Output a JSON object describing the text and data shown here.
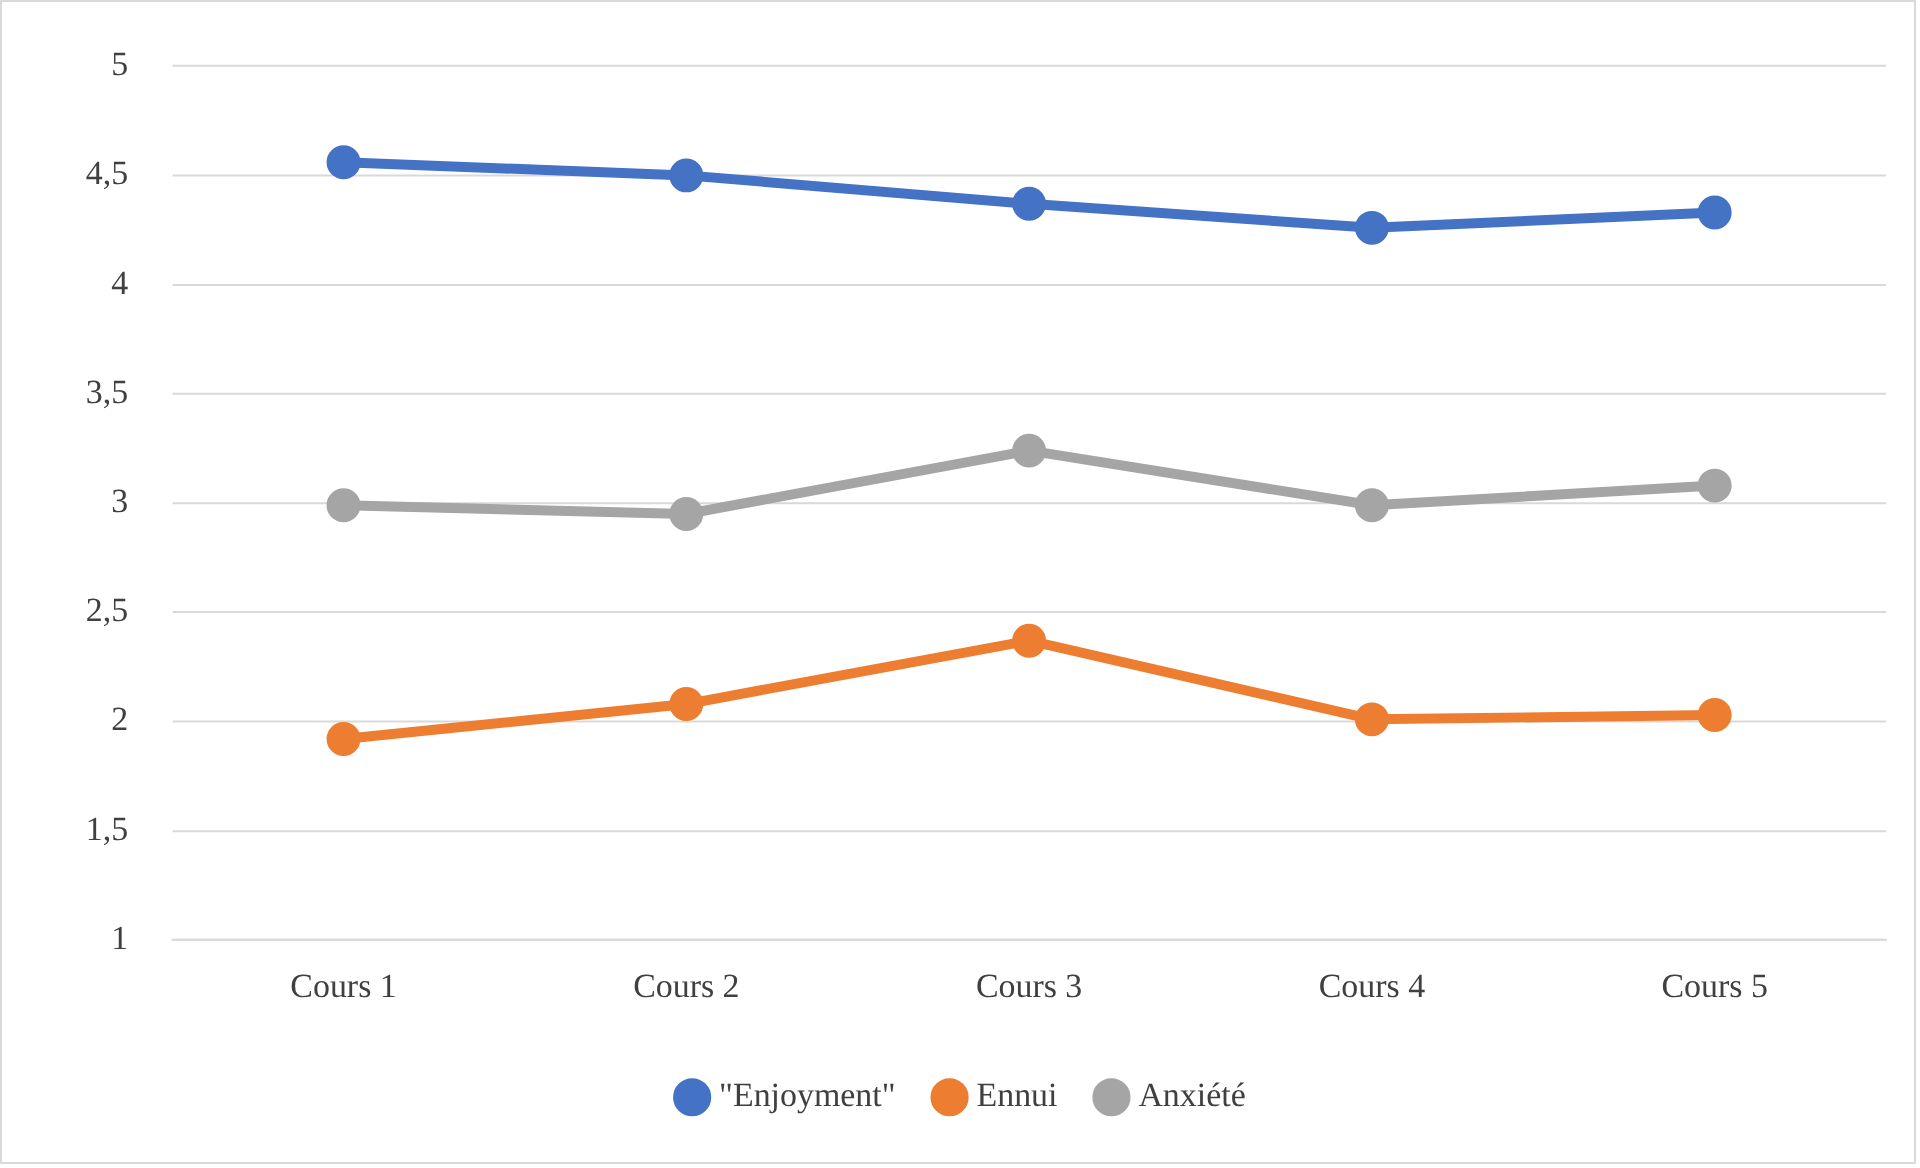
{
  "chart_data": {
    "type": "line",
    "categories": [
      "Cours 1",
      "Cours 2",
      "Cours 3",
      "Cours 4",
      "Cours 5"
    ],
    "series": [
      {
        "name": "\"Enjoyment\"",
        "color": "#4472c4",
        "values": [
          4.56,
          4.5,
          4.37,
          4.26,
          4.33
        ]
      },
      {
        "name": "Ennui",
        "color": "#ed7d31",
        "values": [
          1.92,
          2.08,
          2.37,
          2.01,
          2.03
        ]
      },
      {
        "name": "Anxiété",
        "color": "#a5a5a5",
        "values": [
          2.99,
          2.95,
          3.24,
          2.99,
          3.08
        ]
      }
    ],
    "ylim": [
      1,
      5
    ],
    "yticks": [
      1,
      {
        "value": 1.5,
        "label": "1,5"
      },
      2,
      {
        "value": 2.5,
        "label": "2,5"
      },
      3,
      {
        "value": 3.5,
        "label": "3,5"
      },
      4,
      {
        "value": 4.5,
        "label": "4,5"
      },
      5
    ],
    "grid": "y",
    "legend": "bottom",
    "marker": "circle",
    "line_style": "solid"
  }
}
